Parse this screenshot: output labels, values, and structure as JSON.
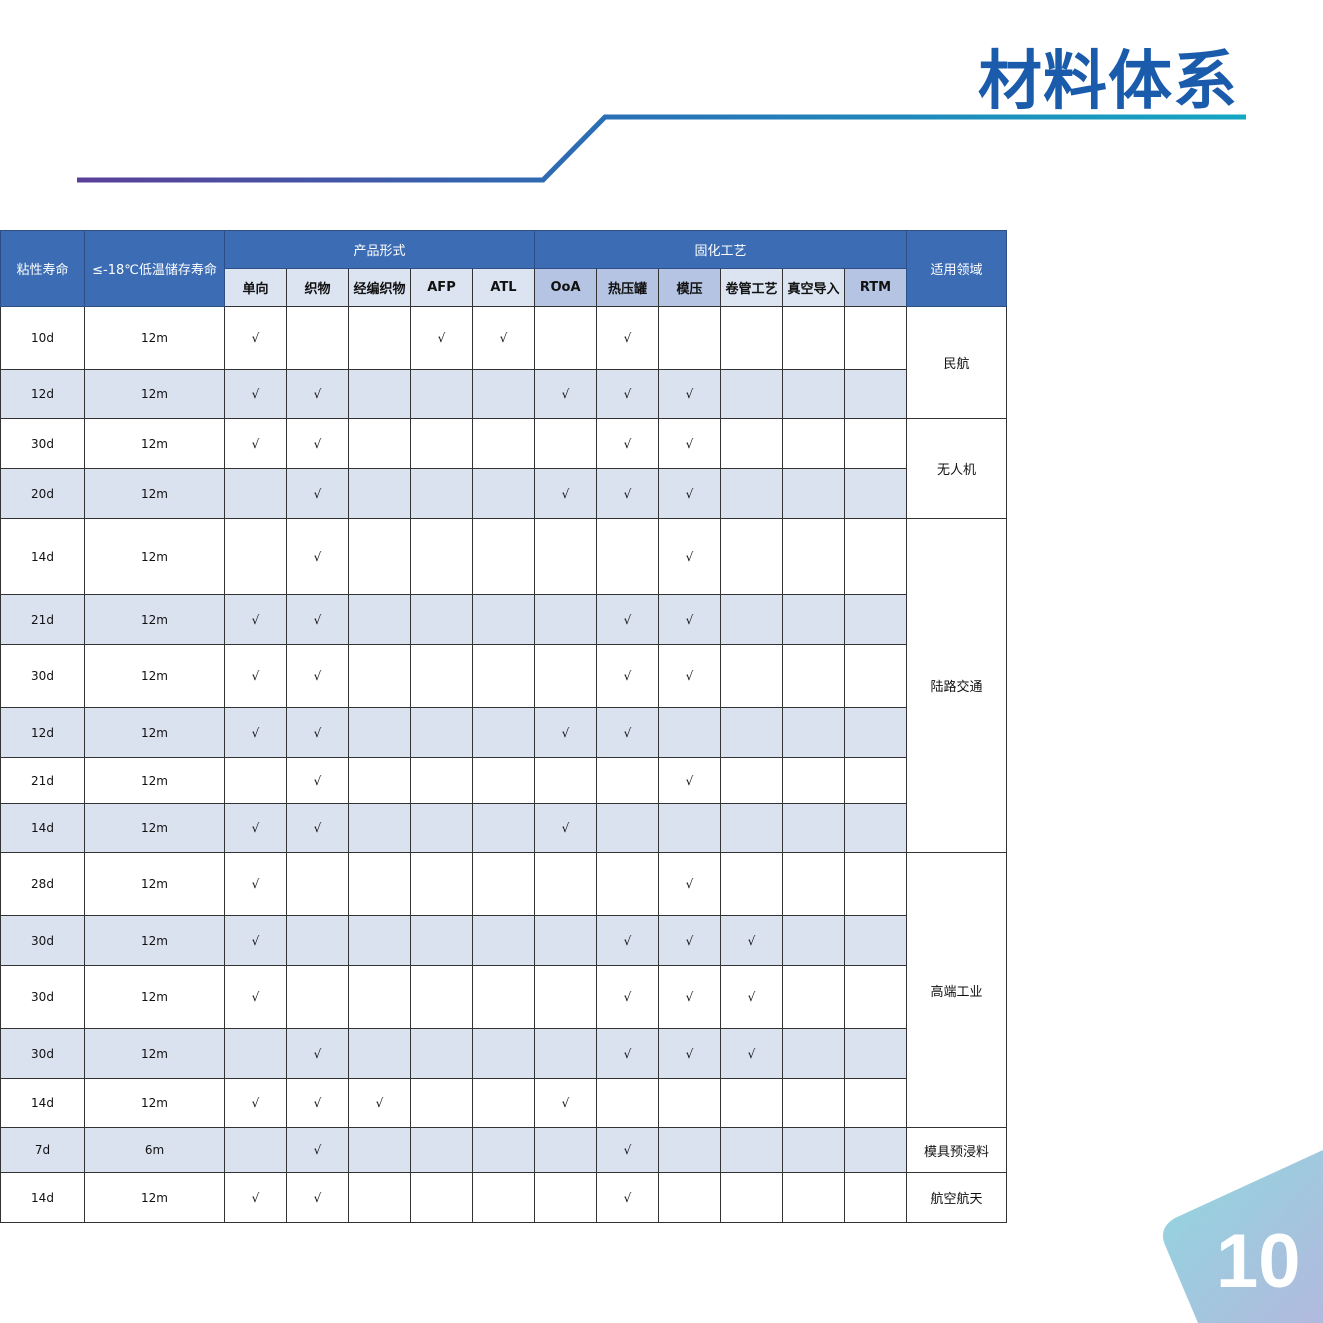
{
  "page": {
    "title": "材料体系",
    "page_number": "10",
    "accent_color": "#1a5bab"
  },
  "table": {
    "headers": {
      "tack_life": "粘性寿命",
      "storage_life": "≤-18℃低温储存寿命",
      "product_form": "产品形式",
      "curing_process": "固化工艺",
      "application": "适用领域",
      "columns": [
        "单向",
        "织物",
        "经编织物",
        "AFP",
        "ATL",
        "OoA",
        "热压罐",
        "模压",
        "卷管工艺",
        "真空导入",
        "RTM"
      ]
    },
    "check_symbol": "√",
    "rows": [
      {
        "tack": "10d",
        "storage": "12m",
        "checks": [
          1,
          0,
          0,
          1,
          1,
          0,
          1,
          0,
          0,
          0,
          0
        ]
      },
      {
        "tack": "12d",
        "storage": "12m",
        "checks": [
          1,
          1,
          0,
          0,
          0,
          1,
          1,
          1,
          0,
          0,
          0
        ]
      },
      {
        "tack": "30d",
        "storage": "12m",
        "checks": [
          1,
          1,
          0,
          0,
          0,
          0,
          1,
          1,
          0,
          0,
          0
        ]
      },
      {
        "tack": "20d",
        "storage": "12m",
        "checks": [
          0,
          1,
          0,
          0,
          0,
          1,
          1,
          1,
          0,
          0,
          0
        ]
      },
      {
        "tack": "14d",
        "storage": "12m",
        "checks": [
          0,
          1,
          0,
          0,
          0,
          0,
          0,
          1,
          0,
          0,
          0
        ]
      },
      {
        "tack": "21d",
        "storage": "12m",
        "checks": [
          1,
          1,
          0,
          0,
          0,
          0,
          1,
          1,
          0,
          0,
          0
        ]
      },
      {
        "tack": "30d",
        "storage": "12m",
        "checks": [
          1,
          1,
          0,
          0,
          0,
          0,
          1,
          1,
          0,
          0,
          0
        ]
      },
      {
        "tack": "12d",
        "storage": "12m",
        "checks": [
          1,
          1,
          0,
          0,
          0,
          1,
          1,
          0,
          0,
          0,
          0
        ]
      },
      {
        "tack": "21d",
        "storage": "12m",
        "checks": [
          0,
          1,
          0,
          0,
          0,
          0,
          0,
          1,
          0,
          0,
          0
        ]
      },
      {
        "tack": "14d",
        "storage": "12m",
        "checks": [
          1,
          1,
          0,
          0,
          0,
          1,
          0,
          0,
          0,
          0,
          0
        ]
      },
      {
        "tack": "28d",
        "storage": "12m",
        "checks": [
          1,
          0,
          0,
          0,
          0,
          0,
          0,
          1,
          0,
          0,
          0
        ]
      },
      {
        "tack": "30d",
        "storage": "12m",
        "checks": [
          1,
          0,
          0,
          0,
          0,
          0,
          1,
          1,
          1,
          0,
          0
        ]
      },
      {
        "tack": "30d",
        "storage": "12m",
        "checks": [
          1,
          0,
          0,
          0,
          0,
          0,
          1,
          1,
          1,
          0,
          0
        ]
      },
      {
        "tack": "30d",
        "storage": "12m",
        "checks": [
          0,
          1,
          0,
          0,
          0,
          0,
          1,
          1,
          1,
          0,
          0
        ]
      },
      {
        "tack": "14d",
        "storage": "12m",
        "checks": [
          1,
          1,
          1,
          0,
          0,
          1,
          0,
          0,
          0,
          0,
          0
        ]
      },
      {
        "tack": "7d",
        "storage": "6m",
        "checks": [
          0,
          1,
          0,
          0,
          0,
          0,
          1,
          0,
          0,
          0,
          0
        ]
      },
      {
        "tack": "14d",
        "storage": "12m",
        "checks": [
          1,
          1,
          0,
          0,
          0,
          0,
          1,
          0,
          0,
          0,
          0
        ]
      }
    ],
    "domains": [
      {
        "label": "民航",
        "rows": 2
      },
      {
        "label": "无人机",
        "rows": 2
      },
      {
        "label": "陆路交通",
        "rows": 6
      },
      {
        "label": "高端工业",
        "rows": 5
      },
      {
        "label": "模具预浸料",
        "rows": 1
      },
      {
        "label": "航空航天",
        "rows": 1
      }
    ]
  }
}
